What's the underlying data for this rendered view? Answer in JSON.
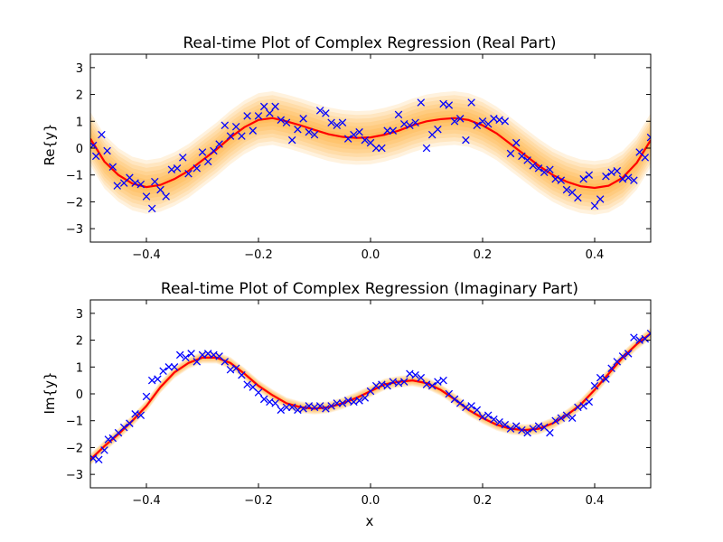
{
  "chart_data": [
    {
      "type": "line",
      "title": "Real-time Plot of Complex Regression (Real Part)",
      "xlabel": "",
      "ylabel": "Re{y}",
      "xlim": [
        -0.5,
        0.5
      ],
      "ylim": [
        -3.5,
        3.5
      ],
      "xticks": [
        -0.4,
        -0.2,
        0.0,
        0.2,
        0.4
      ],
      "xtick_labels": [
        "−0.4",
        "−0.2",
        "0.0",
        "0.2",
        "0.4"
      ],
      "yticks": [
        -3,
        -2,
        -1,
        0,
        1,
        2,
        3
      ],
      "ytick_labels": [
        "−3",
        "−2",
        "−1",
        "0",
        "1",
        "2",
        "3"
      ],
      "grid": false,
      "band_half_width": 1.0,
      "colors": {
        "fit": "#ff0000",
        "points": "#0000ff",
        "band": "#ff9900"
      },
      "fit": {
        "x": [
          -0.5,
          -0.475,
          -0.45,
          -0.425,
          -0.4,
          -0.375,
          -0.35,
          -0.325,
          -0.3,
          -0.275,
          -0.25,
          -0.225,
          -0.2,
          -0.175,
          -0.15,
          -0.125,
          -0.1,
          -0.075,
          -0.05,
          -0.025,
          0.0,
          0.025,
          0.05,
          0.075,
          0.1,
          0.125,
          0.15,
          0.175,
          0.2,
          0.225,
          0.25,
          0.275,
          0.3,
          0.325,
          0.35,
          0.375,
          0.4,
          0.425,
          0.45,
          0.475,
          0.5
        ],
        "y": [
          0.35,
          -0.5,
          -1.0,
          -1.32,
          -1.45,
          -1.37,
          -1.15,
          -0.85,
          -0.45,
          -0.05,
          0.4,
          0.78,
          1.05,
          1.12,
          1.0,
          0.85,
          0.68,
          0.52,
          0.42,
          0.38,
          0.4,
          0.5,
          0.65,
          0.85,
          1.0,
          1.08,
          1.12,
          1.05,
          0.85,
          0.55,
          0.15,
          -0.25,
          -0.65,
          -1.0,
          -1.25,
          -1.42,
          -1.48,
          -1.4,
          -1.1,
          -0.55,
          0.3
        ]
      },
      "points": {
        "x": [
          -0.495,
          -0.49,
          -0.48,
          -0.47,
          -0.46,
          -0.452,
          -0.44,
          -0.43,
          -0.42,
          -0.41,
          -0.4,
          -0.39,
          -0.385,
          -0.375,
          -0.365,
          -0.355,
          -0.345,
          -0.335,
          -0.325,
          -0.31,
          -0.3,
          -0.29,
          -0.28,
          -0.27,
          -0.26,
          -0.25,
          -0.24,
          -0.23,
          -0.22,
          -0.21,
          -0.2,
          -0.19,
          -0.18,
          -0.17,
          -0.16,
          -0.15,
          -0.14,
          -0.13,
          -0.12,
          -0.11,
          -0.1,
          -0.09,
          -0.08,
          -0.07,
          -0.06,
          -0.05,
          -0.04,
          -0.03,
          -0.02,
          -0.01,
          0.0,
          0.01,
          0.02,
          0.03,
          0.04,
          0.05,
          0.06,
          0.07,
          0.08,
          0.09,
          0.1,
          0.11,
          0.12,
          0.13,
          0.14,
          0.15,
          0.16,
          0.17,
          0.18,
          0.19,
          0.2,
          0.21,
          0.22,
          0.23,
          0.24,
          0.25,
          0.26,
          0.27,
          0.28,
          0.29,
          0.3,
          0.31,
          0.32,
          0.33,
          0.34,
          0.35,
          0.36,
          0.37,
          0.38,
          0.39,
          0.4,
          0.41,
          0.42,
          0.43,
          0.44,
          0.45,
          0.46,
          0.47,
          0.48,
          0.49,
          0.5
        ],
        "y": [
          0.1,
          -0.3,
          0.5,
          -0.1,
          -0.7,
          -1.4,
          -1.3,
          -1.1,
          -1.3,
          -1.35,
          -1.8,
          -2.25,
          -1.25,
          -1.55,
          -1.8,
          -0.8,
          -0.75,
          -0.35,
          -0.95,
          -0.75,
          -0.15,
          -0.5,
          -0.1,
          0.15,
          0.85,
          0.45,
          0.8,
          0.45,
          1.2,
          0.65,
          1.2,
          1.55,
          1.3,
          1.55,
          1.05,
          0.95,
          0.3,
          0.7,
          1.1,
          0.6,
          0.5,
          1.4,
          1.3,
          0.95,
          0.85,
          0.95,
          0.35,
          0.5,
          0.6,
          0.3,
          0.2,
          0.0,
          0.0,
          0.65,
          0.65,
          1.25,
          0.9,
          0.85,
          0.95,
          1.7,
          0.0,
          0.5,
          0.7,
          1.65,
          1.6,
          1.0,
          1.1,
          0.3,
          1.7,
          0.85,
          1.0,
          0.9,
          1.1,
          1.05,
          1.0,
          -0.2,
          0.2,
          -0.3,
          -0.45,
          -0.65,
          -0.75,
          -0.9,
          -0.8,
          -1.15,
          -1.2,
          -1.55,
          -1.65,
          -1.85,
          -1.15,
          -1.0,
          -2.15,
          -1.9,
          -1.05,
          -0.9,
          -0.85,
          -1.15,
          -1.1,
          -1.2,
          -0.15,
          -0.35,
          0.4
        ]
      }
    },
    {
      "type": "line",
      "title": "Real-time Plot of Complex Regression (Imaginary Part)",
      "xlabel": "x",
      "ylabel": "Im{y}",
      "xlim": [
        -0.5,
        0.5
      ],
      "ylim": [
        -3.5,
        3.5
      ],
      "xticks": [
        -0.4,
        -0.2,
        0.0,
        0.2,
        0.4
      ],
      "xtick_labels": [
        "−0.4",
        "−0.2",
        "0.0",
        "0.2",
        "0.4"
      ],
      "yticks": [
        -3,
        -2,
        -1,
        0,
        1,
        2,
        3
      ],
      "ytick_labels": [
        "−3",
        "−2",
        "−1",
        "0",
        "1",
        "2",
        "3"
      ],
      "grid": false,
      "band_half_width": 0.22,
      "colors": {
        "fit": "#ff0000",
        "points": "#0000ff",
        "band": "#ff9900"
      },
      "fit": {
        "x": [
          -0.5,
          -0.475,
          -0.45,
          -0.425,
          -0.4,
          -0.375,
          -0.35,
          -0.325,
          -0.3,
          -0.275,
          -0.25,
          -0.225,
          -0.2,
          -0.175,
          -0.15,
          -0.125,
          -0.1,
          -0.075,
          -0.05,
          -0.025,
          0.0,
          0.025,
          0.05,
          0.075,
          0.1,
          0.125,
          0.15,
          0.175,
          0.2,
          0.225,
          0.25,
          0.275,
          0.3,
          0.325,
          0.35,
          0.375,
          0.4,
          0.425,
          0.45,
          0.475,
          0.5
        ],
        "y": [
          -2.45,
          -1.95,
          -1.5,
          -1.0,
          -0.45,
          0.25,
          0.8,
          1.15,
          1.35,
          1.35,
          1.15,
          0.75,
          0.3,
          -0.05,
          -0.35,
          -0.5,
          -0.55,
          -0.5,
          -0.35,
          -0.15,
          0.1,
          0.35,
          0.45,
          0.5,
          0.4,
          0.15,
          -0.2,
          -0.6,
          -0.9,
          -1.15,
          -1.3,
          -1.35,
          -1.3,
          -1.1,
          -0.8,
          -0.4,
          0.15,
          0.75,
          1.35,
          1.85,
          2.25
        ]
      },
      "points": {
        "x": [
          -0.495,
          -0.485,
          -0.475,
          -0.468,
          -0.46,
          -0.45,
          -0.44,
          -0.43,
          -0.42,
          -0.41,
          -0.4,
          -0.39,
          -0.38,
          -0.37,
          -0.36,
          -0.35,
          -0.34,
          -0.33,
          -0.32,
          -0.31,
          -0.3,
          -0.29,
          -0.28,
          -0.27,
          -0.26,
          -0.25,
          -0.24,
          -0.23,
          -0.22,
          -0.21,
          -0.2,
          -0.19,
          -0.18,
          -0.17,
          -0.16,
          -0.15,
          -0.14,
          -0.13,
          -0.12,
          -0.11,
          -0.1,
          -0.09,
          -0.08,
          -0.07,
          -0.06,
          -0.05,
          -0.04,
          -0.03,
          -0.02,
          -0.01,
          0.0,
          0.01,
          0.02,
          0.03,
          0.04,
          0.05,
          0.06,
          0.07,
          0.08,
          0.09,
          0.1,
          0.11,
          0.12,
          0.13,
          0.14,
          0.15,
          0.16,
          0.17,
          0.18,
          0.19,
          0.2,
          0.21,
          0.22,
          0.23,
          0.24,
          0.25,
          0.26,
          0.27,
          0.28,
          0.29,
          0.3,
          0.31,
          0.32,
          0.33,
          0.34,
          0.35,
          0.36,
          0.37,
          0.38,
          0.39,
          0.4,
          0.41,
          0.42,
          0.43,
          0.44,
          0.45,
          0.46,
          0.47,
          0.48,
          0.49,
          0.5
        ],
        "y": [
          -2.4,
          -2.45,
          -2.1,
          -1.7,
          -1.65,
          -1.45,
          -1.25,
          -1.1,
          -0.75,
          -0.8,
          -0.1,
          0.5,
          0.55,
          0.85,
          1.0,
          1.0,
          1.45,
          1.35,
          1.5,
          1.2,
          1.45,
          1.5,
          1.45,
          1.4,
          1.2,
          0.9,
          0.95,
          0.7,
          0.35,
          0.25,
          0.05,
          -0.2,
          -0.3,
          -0.35,
          -0.6,
          -0.5,
          -0.5,
          -0.6,
          -0.55,
          -0.45,
          -0.5,
          -0.45,
          -0.55,
          -0.45,
          -0.35,
          -0.35,
          -0.25,
          -0.3,
          -0.25,
          -0.15,
          0.1,
          0.3,
          0.35,
          0.3,
          0.45,
          0.4,
          0.45,
          0.75,
          0.7,
          0.6,
          0.35,
          0.3,
          0.45,
          0.5,
          0.0,
          -0.2,
          -0.35,
          -0.5,
          -0.45,
          -0.6,
          -0.85,
          -0.8,
          -0.95,
          -1.05,
          -1.15,
          -1.3,
          -1.2,
          -1.35,
          -1.45,
          -1.3,
          -1.2,
          -1.25,
          -1.45,
          -1.0,
          -0.9,
          -0.8,
          -0.9,
          -0.5,
          -0.45,
          -0.3,
          0.3,
          0.6,
          0.55,
          0.95,
          1.2,
          1.4,
          1.5,
          2.1,
          2.0,
          2.05,
          2.25
        ]
      }
    }
  ]
}
